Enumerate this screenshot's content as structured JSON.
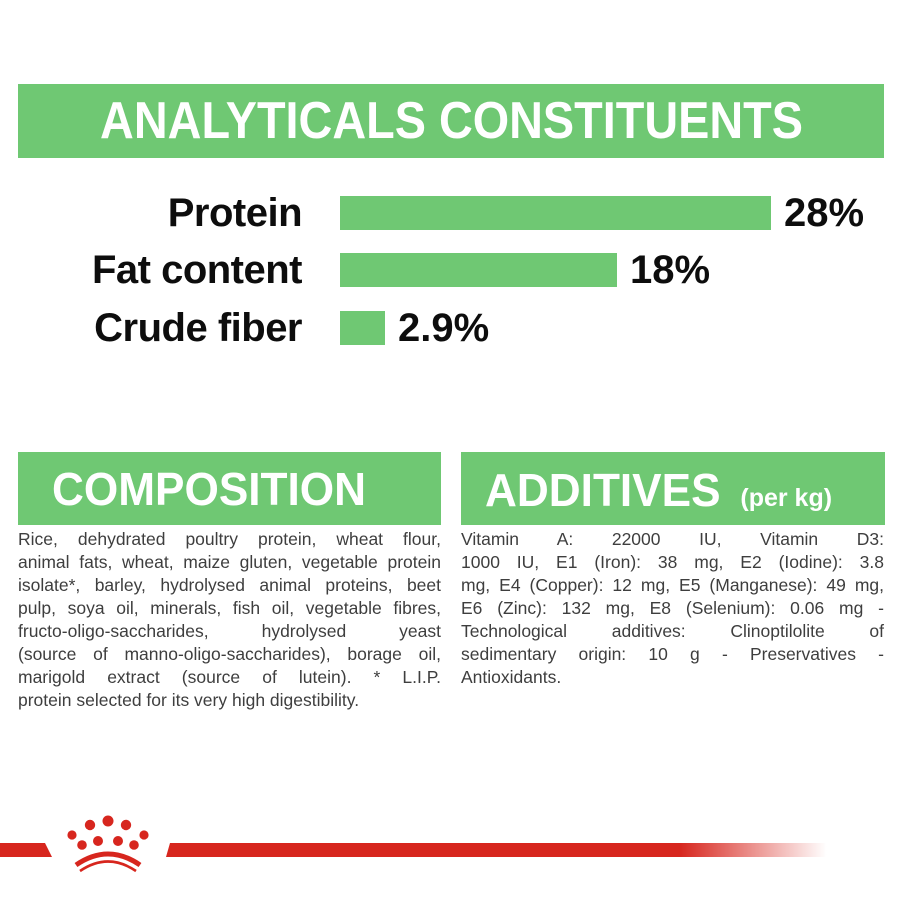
{
  "colors": {
    "green": "#6fc873",
    "red": "#d7261e",
    "heading_text": "#ffffff",
    "chart_label_text": "#0d0d0d",
    "body_text": "#3e3e3e"
  },
  "analyticals": {
    "title": "ANALYTICALS CONSTITUENTS"
  },
  "chart_data": {
    "type": "bar",
    "orientation": "horizontal",
    "title": "ANALYTICALS CONSTITUENTS",
    "categories": [
      "Protein",
      "Fat content",
      "Crude fiber"
    ],
    "values": [
      28,
      18,
      2.9
    ],
    "value_labels": [
      "28%",
      "18%",
      "2.9%"
    ],
    "bar_color": "#6fc873",
    "xlim": [
      0,
      28
    ],
    "grid": false,
    "legend": false
  },
  "composition": {
    "title": "COMPOSITION",
    "lines": [
      "Rice, dehydrated poultry protein, wheat flour,",
      "animal fats, wheat, maize gluten, vegetable protein",
      "isolate*, barley, hydrolysed animal proteins, beet",
      "pulp, soya oil, minerals, fish oil, vegetable fibres,",
      "fructo-oligo-saccharides, hydrolysed yeast",
      "(source of manno-oligo-saccharides), borage oil,",
      "marigold extract (source of lutein). * L.I.P.",
      "protein selected for its very high digestibility."
    ]
  },
  "additives": {
    "title": "ADDITIVES",
    "unit": "(per kg)",
    "lines": [
      "Vitamin A: 22000 IU, Vitamin D3:",
      "1000 IU, E1 (Iron): 38 mg, E2 (Iodine): 3.8",
      "mg, E4 (Copper): 12 mg, E5 (Manganese): 49 mg,",
      "E6 (Zinc): 132 mg, E8 (Selenium): 0.06 mg -",
      "Technological additives: Clinoptilolite of",
      "sedimentary origin: 10 g - Preservatives -",
      "Antioxidants."
    ]
  },
  "footer": {
    "logo": "royal-canin-crown"
  }
}
